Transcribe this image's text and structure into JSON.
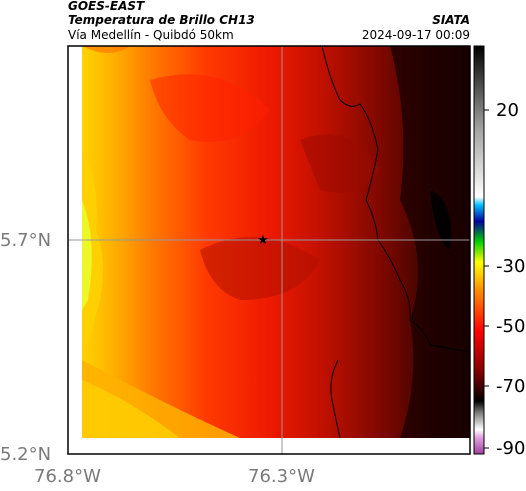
{
  "header": {
    "satellite": "GOES-EAST",
    "product": "Temperatura de Brillo CH13",
    "route": "Vía Medellín - Quibdó 50km",
    "source": "SIATA",
    "datetime": "2024-09-17 00:09"
  },
  "map": {
    "lat_labels": [
      "5.7°N",
      "5.2°N"
    ],
    "lon_labels": [
      "76.8°W",
      "76.3°W"
    ],
    "marker": "star-marker",
    "colors": {
      "frame": "#000000",
      "gridline": "#999999",
      "background": "#ffffff"
    }
  },
  "colorbar": {
    "ticks": [
      "20",
      "-30",
      "-50",
      "-70",
      "-90"
    ],
    "stops": [
      "#a040a0",
      "#ffffff",
      "#c0c0c0",
      "#000000",
      "#8b0000",
      "#ff0000",
      "#ff8c00",
      "#ffff00",
      "#00c000",
      "#0000a0",
      "#00c0ff",
      "#ffffff",
      "#c0c0c0",
      "#000000"
    ]
  }
}
